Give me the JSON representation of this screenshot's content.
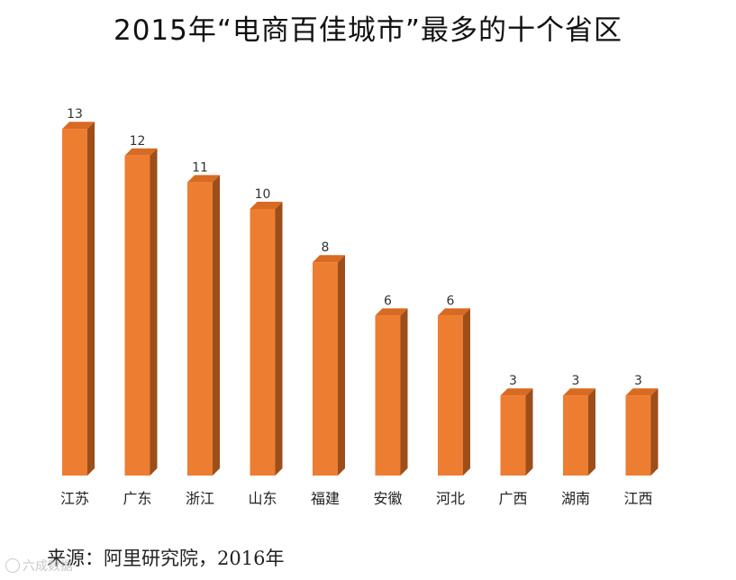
{
  "chart_data": {
    "type": "bar",
    "title": "2015年“电商百佳城市”最多的十个省区",
    "categories": [
      "江苏",
      "广东",
      "浙江",
      "山东",
      "福建",
      "安徽",
      "河北",
      "广西",
      "湖南",
      "江西"
    ],
    "values": [
      13,
      12,
      11,
      10,
      8,
      6,
      6,
      3,
      3,
      3
    ],
    "ylim": [
      0,
      13
    ],
    "grid": false,
    "legend": "none",
    "bar_color": "#ED7D31",
    "bar_side_color": "#9C4E1B",
    "bar_top_color": "#D96A22"
  },
  "source": "来源：阿里研究院，2016年",
  "watermark": "六成数据"
}
